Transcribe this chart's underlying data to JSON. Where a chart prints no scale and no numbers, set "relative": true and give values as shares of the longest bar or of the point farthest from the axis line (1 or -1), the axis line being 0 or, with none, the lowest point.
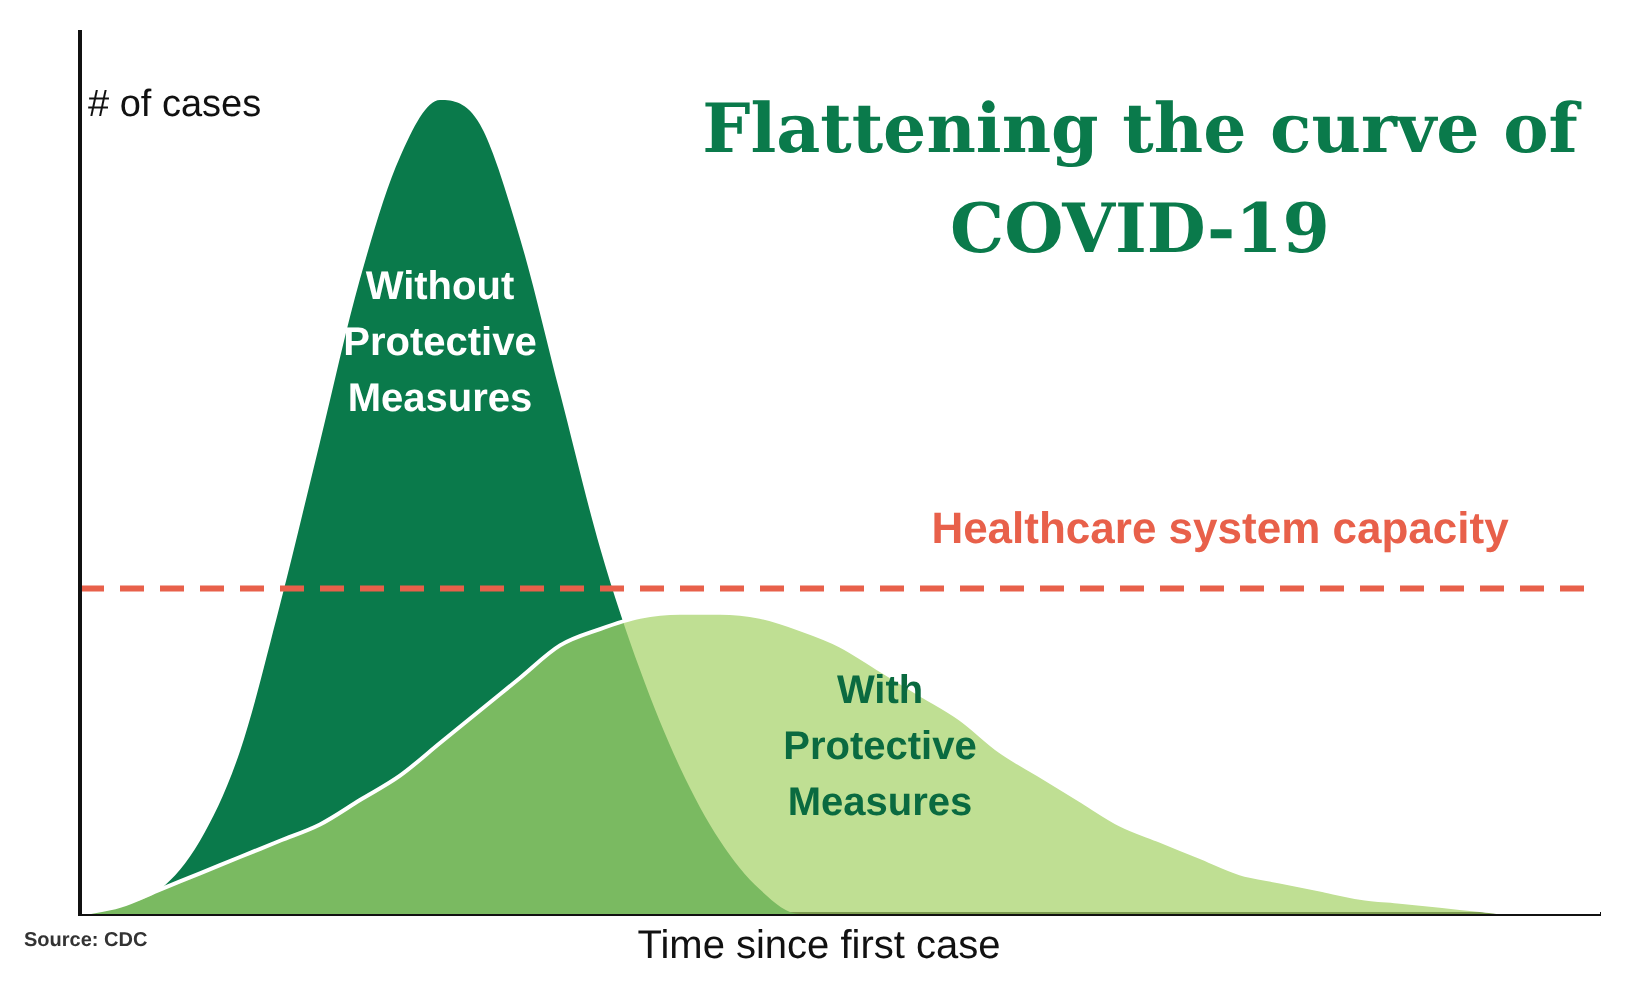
{
  "chart_data": {
    "type": "area",
    "title": "Flattening the curve of COVID-19",
    "ylabel": "# of cases",
    "xlabel": "Time since first case",
    "relative": true,
    "legend": false,
    "grid": false,
    "annotations": [
      "Source: CDC"
    ],
    "categories": [
      null,
      null,
      null,
      null,
      null,
      null,
      null,
      null,
      null,
      null,
      null,
      null,
      null,
      null,
      null,
      null,
      null,
      null,
      null,
      null,
      null,
      null,
      null,
      null,
      null,
      null,
      null,
      null,
      null,
      null,
      null,
      null,
      null,
      null,
      null,
      null,
      null,
      null,
      null
    ],
    "series": [
      {
        "name": "Without Protective Measures",
        "color": "#0a7a4b",
        "values": [
          0,
          0.01,
          0.03,
          0.09,
          0.2,
          0.38,
          0.58,
          0.78,
          0.93,
          1,
          0.97,
          0.83,
          0.64,
          0.45,
          0.3,
          0.18,
          0.09,
          0.03,
          0,
          0,
          0,
          0,
          0,
          0,
          0,
          0,
          0,
          0,
          0,
          0,
          0,
          0,
          0,
          0,
          0,
          0,
          0,
          0,
          0
        ]
      },
      {
        "name": "With Protective Measures",
        "color": "#a6d36a",
        "values": [
          0,
          0.01,
          0.03,
          0.05,
          0.07,
          0.09,
          0.11,
          0.14,
          0.17,
          0.21,
          0.25,
          0.29,
          0.33,
          0.35,
          0.365,
          0.37,
          0.37,
          0.365,
          0.35,
          0.33,
          0.3,
          0.27,
          0.24,
          0.2,
          0.17,
          0.14,
          0.11,
          0.09,
          0.07,
          0.05,
          0.04,
          0.03,
          0.02,
          0.015,
          0.01,
          0.005,
          0,
          0,
          0
        ]
      }
    ],
    "ref_lines": [
      {
        "axis": "y",
        "value": 0.4,
        "label": "Healthcare system capacity",
        "color": "#e8604a",
        "line_style": "dashed"
      }
    ]
  }
}
